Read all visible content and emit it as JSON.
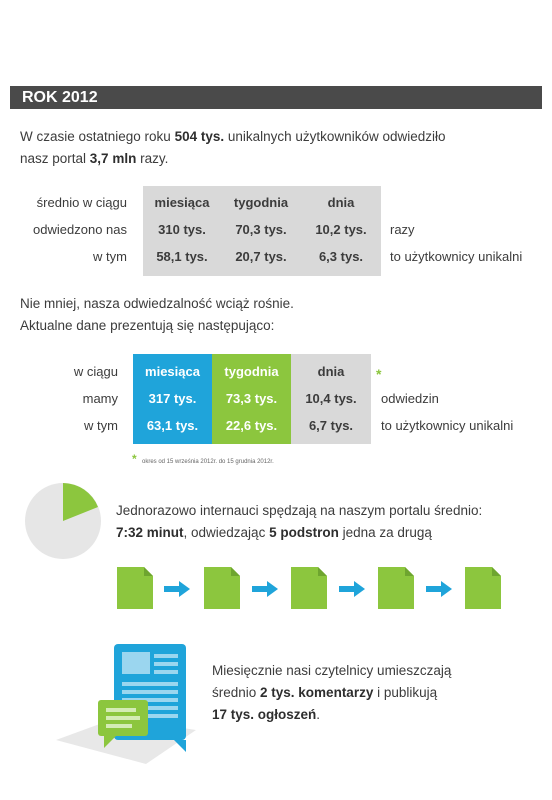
{
  "title": "ROK 2012",
  "intro": {
    "l1a": "W czasie ostatniego roku ",
    "l1b": "504 tys.",
    "l1c": " unikalnych użytkowników odwiedziło",
    "l2a": "nasz portal ",
    "l2b": "3,7 mln",
    "l2c": " razy."
  },
  "table1": {
    "row_labels": [
      "średnio w ciągu",
      "odwiedzono nas",
      "w tym"
    ],
    "headers": [
      "miesiąca",
      "tygodnia",
      "dnia"
    ],
    "rows": [
      [
        "310 tys.",
        "70,3 tys.",
        "10,2 tys."
      ],
      [
        "58,1 tys.",
        "20,7 tys.",
        "6,3 tys."
      ]
    ],
    "after": [
      "razy",
      "to użytkownicy unikalni"
    ]
  },
  "growth": {
    "l1": "Nie mniej, nasza odwiedzalność wciąż rośnie.",
    "l2": "Aktualne dane prezentują się następująco:"
  },
  "table2": {
    "row_labels": [
      "w ciągu",
      "mamy",
      "w tym"
    ],
    "headers": [
      "miesiąca",
      "tygodnia",
      "dnia"
    ],
    "rows": [
      [
        "317 tys.",
        "73,3 tys.",
        "10,4 tys."
      ],
      [
        "63,1 tys.",
        "22,6 tys.",
        "6,7 tys."
      ]
    ],
    "after": [
      "odwiedzin",
      "to użytkownicy unikalni"
    ],
    "star": "*",
    "footnote": "okres od 15 września 2012r. do 15 grudnia 2012r."
  },
  "visit": {
    "l1": "Jednorazowo internauci spędzają na naszym portalu średnio:",
    "l2a": "7:32 minut",
    "l2b": ", odwiedzając ",
    "l2c": "5 podstron",
    "l2d": " jedna za drugą"
  },
  "comments": {
    "l1": "Miesięcznie nasi czytelnicy umieszczają",
    "l2a": "średnio ",
    "l2b": "2 tys. komentarzy",
    "l2c": " i publikują",
    "l3a": "17 tys. ogłoszeń",
    "l3b": "."
  },
  "colors": {
    "blue": "#1fa4da",
    "green": "#8cc63e",
    "grey": "#d9d9d9",
    "dark": "#4a4a4a"
  },
  "icons": [
    "pie-chart-icon",
    "document-icon",
    "arrow-right-icon",
    "chat-document-icon"
  ]
}
